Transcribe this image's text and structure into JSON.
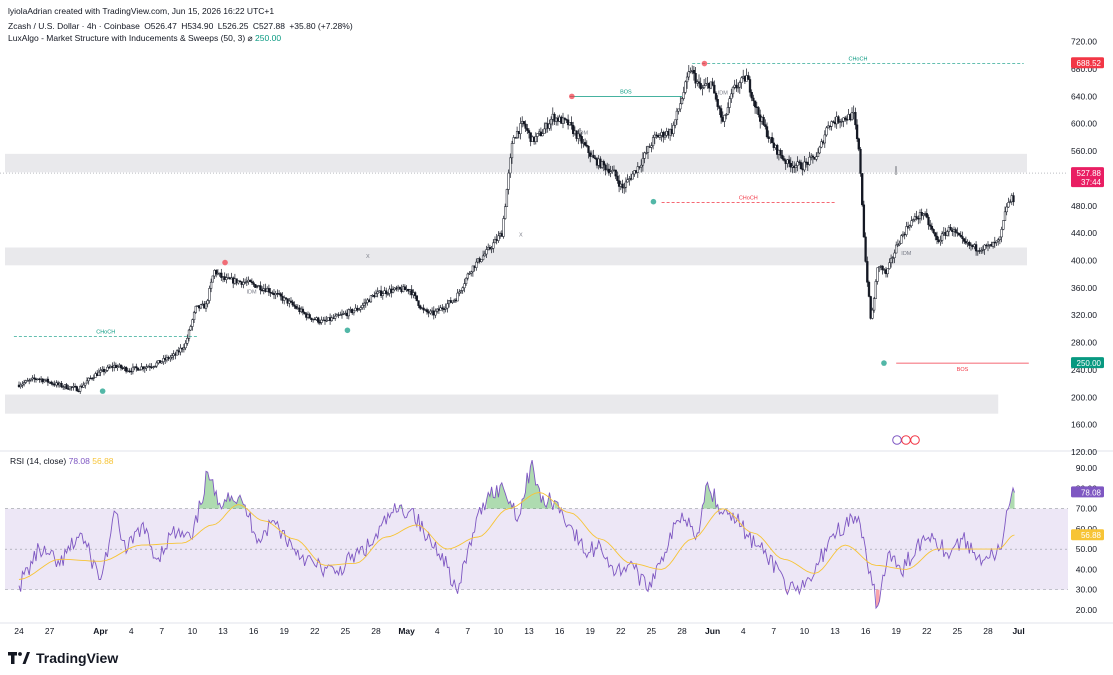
{
  "caption": "lyiolaAdrian created with TradingView.com, Jun 15, 2026 16:22 UTC+1",
  "legend": {
    "symbol": "Zcash / U.S. Dollar · 4h · Coinbase",
    "open": "O526.47",
    "high": "H534.90",
    "low": "L526.25",
    "close": "C527.88",
    "change": "+35.80 (+7.28%)",
    "indicator": "LuxAlgo - Market Structure with Inducements & Sweeps (50, 3)",
    "indicator_symbol": "⌀",
    "indicator_value": "250.00"
  },
  "rsi_legend": {
    "label": "RSI (14, close)",
    "rsi": "78.08",
    "ma": "56.88"
  },
  "brand": "TradingView",
  "colors": {
    "up": "#ffffff",
    "down": "#131722",
    "wick": "#131722",
    "bull_struct": "#089981",
    "bear_struct": "#f23645",
    "rsi_line": "#7e57c2",
    "rsi_ma": "#f7c436",
    "rsi_band": "#ede7f6",
    "zone": "#e9e9ec",
    "price_tag": "#f23645",
    "low_tag": "#089981",
    "last_tag": "#e91e63"
  },
  "chart_data": [
    {
      "type": "candlestick",
      "ylim": [
        120,
        740
      ],
      "yticks": [
        120,
        160,
        200,
        240,
        280,
        320,
        360,
        400,
        440,
        480,
        560,
        600,
        640,
        680,
        720
      ],
      "x_ticks": [
        "24",
        "27",
        "Apr",
        "4",
        "7",
        "10",
        "13",
        "16",
        "19",
        "22",
        "25",
        "28",
        "May",
        "4",
        "7",
        "10",
        "13",
        "16",
        "19",
        "22",
        "25",
        "28",
        "Jun",
        "4",
        "7",
        "10",
        "13",
        "16",
        "19",
        "22",
        "25",
        "28",
        "Jul"
      ],
      "bold_ticks": [
        "Apr",
        "May",
        "Jun",
        "Jul"
      ],
      "key_points": [
        {
          "d": 0,
          "p": 218
        },
        {
          "d": 2,
          "p": 228
        },
        {
          "d": 4,
          "p": 218
        },
        {
          "d": 6,
          "p": 212
        },
        {
          "d": 7.5,
          "p": 232
        },
        {
          "d": 9.5,
          "p": 246
        },
        {
          "d": 11,
          "p": 240
        },
        {
          "d": 13.5,
          "p": 248
        },
        {
          "d": 15.5,
          "p": 262
        },
        {
          "d": 16.5,
          "p": 278
        },
        {
          "d": 17.5,
          "p": 330
        },
        {
          "d": 18.5,
          "p": 334
        },
        {
          "d": 19.3,
          "p": 385
        },
        {
          "d": 20.3,
          "p": 372
        },
        {
          "d": 22.5,
          "p": 368
        },
        {
          "d": 24.5,
          "p": 358
        },
        {
          "d": 26.5,
          "p": 340
        },
        {
          "d": 28.5,
          "p": 318
        },
        {
          "d": 30,
          "p": 310
        },
        {
          "d": 31.5,
          "p": 318
        },
        {
          "d": 33.5,
          "p": 330
        },
        {
          "d": 35,
          "p": 350
        },
        {
          "d": 36.5,
          "p": 356
        },
        {
          "d": 38.5,
          "p": 358
        },
        {
          "d": 39.8,
          "p": 326
        },
        {
          "d": 40.8,
          "p": 322
        },
        {
          "d": 43,
          "p": 345
        },
        {
          "d": 44.5,
          "p": 388
        },
        {
          "d": 46,
          "p": 412
        },
        {
          "d": 47.5,
          "p": 440
        },
        {
          "d": 48.6,
          "p": 580
        },
        {
          "d": 49.6,
          "p": 600
        },
        {
          "d": 50.5,
          "p": 575
        },
        {
          "d": 51.5,
          "p": 588
        },
        {
          "d": 52.5,
          "p": 610
        },
        {
          "d": 54,
          "p": 600
        },
        {
          "d": 55.5,
          "p": 570
        },
        {
          "d": 56.5,
          "p": 548
        },
        {
          "d": 58.5,
          "p": 528
        },
        {
          "d": 59.3,
          "p": 505
        },
        {
          "d": 61,
          "p": 540
        },
        {
          "d": 62.5,
          "p": 580
        },
        {
          "d": 64.2,
          "p": 590
        },
        {
          "d": 65.2,
          "p": 640
        },
        {
          "d": 66,
          "p": 680
        },
        {
          "d": 67,
          "p": 650
        },
        {
          "d": 68,
          "p": 660
        },
        {
          "d": 69.2,
          "p": 600
        },
        {
          "d": 70.2,
          "p": 650
        },
        {
          "d": 71.5,
          "p": 668
        },
        {
          "d": 72.5,
          "p": 620
        },
        {
          "d": 74,
          "p": 570
        },
        {
          "d": 75.5,
          "p": 542
        },
        {
          "d": 77,
          "p": 538
        },
        {
          "d": 78.5,
          "p": 555
        },
        {
          "d": 79.5,
          "p": 600
        },
        {
          "d": 80.5,
          "p": 606
        },
        {
          "d": 82,
          "p": 612
        },
        {
          "d": 82.6,
          "p": 548
        },
        {
          "d": 83.1,
          "p": 410
        },
        {
          "d": 83.7,
          "p": 310
        },
        {
          "d": 84.4,
          "p": 395
        },
        {
          "d": 85.2,
          "p": 380
        },
        {
          "d": 86.3,
          "p": 425
        },
        {
          "d": 87.5,
          "p": 455
        },
        {
          "d": 88.8,
          "p": 470
        },
        {
          "d": 90.2,
          "p": 428
        },
        {
          "d": 91.5,
          "p": 448
        },
        {
          "d": 92.8,
          "p": 425
        },
        {
          "d": 94,
          "p": 418
        },
        {
          "d": 95.3,
          "p": 420
        },
        {
          "d": 96.3,
          "p": 428
        },
        {
          "d": 97,
          "p": 480
        },
        {
          "d": 97.5,
          "p": 490
        }
      ],
      "zones": [
        {
          "from": 529,
          "to": 556
        },
        {
          "from": 393,
          "to": 419
        },
        {
          "from": 176,
          "to": 204,
          "end_day": 96
        }
      ],
      "structures": [
        {
          "label": "CHoCH",
          "kind": "bull",
          "y": 289,
          "from": -0.5,
          "to": 17.5,
          "dashed": true
        },
        {
          "label": "BOS",
          "kind": "bull",
          "y": 640,
          "from": 54,
          "to": 65,
          "dashed": false
        },
        {
          "label": "CHoCH",
          "kind": "bull",
          "y": 688,
          "from": 66,
          "to": 98.5,
          "dashed": true
        },
        {
          "label": "CHoCH",
          "kind": "bear",
          "y": 485,
          "from": 63,
          "to": 80,
          "dashed": true
        },
        {
          "label": "BOS",
          "kind": "bear",
          "y": 250,
          "from": 86,
          "to": 99,
          "dashed": false
        }
      ],
      "idm_labels": [
        {
          "label": "IDM",
          "d": 22.3,
          "p": 352
        },
        {
          "label": "IDM",
          "d": 54.8,
          "p": 584
        },
        {
          "label": "IDM",
          "d": 68.5,
          "p": 643
        },
        {
          "label": "IDM",
          "d": 86.5,
          "p": 408
        }
      ],
      "x_marks": [
        {
          "label": "X",
          "d": 34.2,
          "p": 404
        },
        {
          "label": "X",
          "d": 49.2,
          "p": 435
        }
      ],
      "swing_points": [
        {
          "kind": "low",
          "d": 8.2,
          "p": 209
        },
        {
          "kind": "high",
          "d": 20.2,
          "p": 397
        },
        {
          "kind": "low",
          "d": 32.2,
          "p": 298
        },
        {
          "kind": "high",
          "d": 54.2,
          "p": 640
        },
        {
          "kind": "low",
          "d": 62.2,
          "p": 486
        },
        {
          "kind": "high",
          "d": 67.2,
          "p": 688
        },
        {
          "kind": "low",
          "d": 84.8,
          "p": 250
        }
      ],
      "price_tags": [
        {
          "label": "688.52",
          "value": 688.52,
          "kind": "high"
        },
        {
          "label": "527.88",
          "value": 527.88,
          "kind": "last",
          "sub": "37:44"
        },
        {
          "label": "250.00",
          "value": 250,
          "kind": "low"
        }
      ]
    },
    {
      "type": "line",
      "name": "RSI (14, close)",
      "ylim": [
        14,
        98
      ],
      "yticks": [
        20,
        30,
        40,
        50,
        60,
        70,
        80,
        90
      ],
      "band": [
        30,
        70
      ],
      "rsi": [
        [
          0,
          32
        ],
        [
          2,
          50
        ],
        [
          4,
          42
        ],
        [
          6,
          58
        ],
        [
          8,
          35
        ],
        [
          9.5,
          68
        ],
        [
          10.5,
          48
        ],
        [
          12,
          62
        ],
        [
          13.5,
          45
        ],
        [
          15,
          58
        ],
        [
          17,
          55
        ],
        [
          18.5,
          88
        ],
        [
          19.5,
          72
        ],
        [
          20.5,
          78
        ],
        [
          22,
          72
        ],
        [
          23.5,
          55
        ],
        [
          25,
          64
        ],
        [
          27,
          50
        ],
        [
          29,
          42
        ],
        [
          31,
          38
        ],
        [
          32.5,
          45
        ],
        [
          34.5,
          52
        ],
        [
          36.5,
          68
        ],
        [
          38.5,
          70
        ],
        [
          40,
          55
        ],
        [
          41.5,
          48
        ],
        [
          43,
          28
        ],
        [
          44.5,
          58
        ],
        [
          46,
          78
        ],
        [
          47.5,
          80
        ],
        [
          49,
          66
        ],
        [
          50.3,
          94
        ],
        [
          51.2,
          73
        ],
        [
          52.5,
          74
        ],
        [
          54,
          62
        ],
        [
          55.5,
          48
        ],
        [
          57,
          52
        ],
        [
          58.5,
          38
        ],
        [
          60,
          44
        ],
        [
          61.5,
          30
        ],
        [
          63,
          46
        ],
        [
          65,
          68
        ],
        [
          66.5,
          58
        ],
        [
          67.5,
          83
        ],
        [
          68.5,
          72
        ],
        [
          70,
          68
        ],
        [
          71.5,
          56
        ],
        [
          73,
          48
        ],
        [
          74.5,
          40
        ],
        [
          75.5,
          30
        ],
        [
          76.5,
          28
        ],
        [
          78,
          38
        ],
        [
          79.5,
          56
        ],
        [
          81,
          62
        ],
        [
          82.3,
          66
        ],
        [
          83.3,
          38
        ],
        [
          84.2,
          22
        ],
        [
          85.2,
          48
        ],
        [
          86.5,
          38
        ],
        [
          88,
          52
        ],
        [
          89.5,
          58
        ],
        [
          91,
          48
        ],
        [
          92.5,
          55
        ],
        [
          94,
          46
        ],
        [
          95.5,
          47
        ],
        [
          96.3,
          50
        ],
        [
          97,
          70
        ],
        [
          97.6,
          78
        ]
      ],
      "ma": [
        [
          0,
          35
        ],
        [
          4,
          45
        ],
        [
          8,
          44
        ],
        [
          12,
          52
        ],
        [
          16,
          53
        ],
        [
          19,
          62
        ],
        [
          21.5,
          72
        ],
        [
          24,
          64
        ],
        [
          27,
          55
        ],
        [
          30,
          42
        ],
        [
          33,
          43
        ],
        [
          36,
          56
        ],
        [
          39,
          62
        ],
        [
          42,
          50
        ],
        [
          45,
          56
        ],
        [
          48,
          70
        ],
        [
          51,
          78
        ],
        [
          54,
          68
        ],
        [
          57,
          55
        ],
        [
          60,
          43
        ],
        [
          63,
          40
        ],
        [
          66,
          55
        ],
        [
          69,
          70
        ],
        [
          72,
          58
        ],
        [
          75,
          45
        ],
        [
          78,
          38
        ],
        [
          81,
          52
        ],
        [
          84,
          42
        ],
        [
          87,
          40
        ],
        [
          90,
          50
        ],
        [
          93,
          50
        ],
        [
          96,
          50
        ],
        [
          97.6,
          57
        ]
      ],
      "tags": [
        {
          "label": "78.08",
          "value": 78.08,
          "kind": "rsi"
        },
        {
          "label": "56.88",
          "value": 56.88,
          "kind": "ma"
        }
      ]
    }
  ]
}
